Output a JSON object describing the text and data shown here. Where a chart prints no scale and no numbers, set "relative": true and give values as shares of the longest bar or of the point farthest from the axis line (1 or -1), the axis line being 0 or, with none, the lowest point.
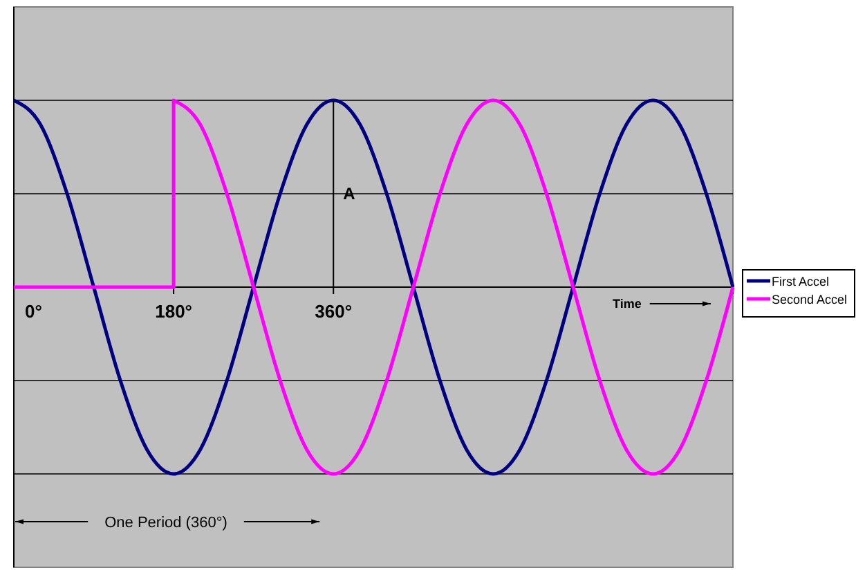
{
  "chart_data": {
    "type": "line",
    "relative": true,
    "legend": "right",
    "line_style": "solid",
    "marker": "none",
    "ref_lines": [
      {
        "axis": "y",
        "value": 1,
        "color": "#000000"
      },
      {
        "axis": "y",
        "value": 0.5,
        "color": "#000000"
      },
      {
        "axis": "y",
        "value": -0.5,
        "color": "#000000"
      },
      {
        "axis": "y",
        "value": -1,
        "color": "#000000"
      }
    ],
    "xlim": [
      0,
      810
    ],
    "xticks": [
      {
        "value": 0,
        "label": "0°"
      },
      {
        "value": 180,
        "label": "180°"
      },
      {
        "value": 360,
        "label": "360°"
      }
    ],
    "annotations": [
      "A",
      "Time",
      "One Period (360°)"
    ],
    "series": [
      {
        "name": "First Accel",
        "color": "#000080",
        "x": [
          0,
          30,
          60,
          90,
          120,
          150,
          180,
          210,
          240,
          270,
          300,
          330,
          360,
          390,
          420,
          450,
          480,
          510,
          540,
          570,
          600,
          630,
          660,
          690,
          720,
          750,
          780,
          810
        ],
        "values": [
          1,
          0.87,
          0.5,
          0,
          -0.5,
          -0.87,
          -1,
          -0.87,
          -0.5,
          0,
          0.5,
          0.87,
          1,
          0.87,
          0.5,
          0,
          -0.5,
          -0.87,
          -1,
          -0.87,
          -0.5,
          0,
          0.5,
          0.87,
          1,
          0.87,
          0.5,
          0
        ]
      },
      {
        "name": "Second Accel",
        "color": "#ff00ff",
        "x": [
          0,
          180,
          180,
          210,
          240,
          270,
          300,
          330,
          360,
          390,
          420,
          450,
          480,
          510,
          540,
          570,
          600,
          630,
          660,
          690,
          720,
          750,
          780,
          810
        ],
        "values": [
          0,
          0,
          1,
          0.87,
          0.5,
          0,
          -0.5,
          -0.87,
          -1,
          -0.87,
          -0.5,
          0,
          0.5,
          0.87,
          1,
          0.87,
          0.5,
          0,
          -0.5,
          -0.87,
          -1,
          -0.87,
          -0.5,
          0
        ]
      }
    ]
  }
}
